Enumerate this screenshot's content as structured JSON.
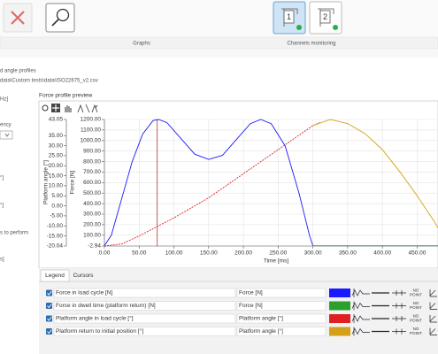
{
  "toolbar": {
    "sections": [
      "Graphs",
      "Channels monitoring"
    ],
    "channels": [
      "1",
      "2"
    ]
  },
  "left_panel": {
    "texts": [
      "d angle profiles",
      "data\\Custom tests\\data\\ISO22675_v2.csv",
      "Hz]",
      "ency",
      "°]",
      "°]",
      "s to perform",
      "s]"
    ]
  },
  "chart": {
    "type": "line",
    "title": "Force profile preview",
    "x_label": "Time [ms]",
    "angle_axis_label": "Platform angle [°]",
    "force_axis_label": "Force [N]",
    "xlim": [
      0,
      480
    ],
    "xticks": [
      {
        "value": 0,
        "label": "0.00"
      },
      {
        "value": 50,
        "label": "50.00"
      },
      {
        "value": 100,
        "label": "100.00"
      },
      {
        "value": 150,
        "label": "150.00"
      },
      {
        "value": 200,
        "label": "200.00"
      },
      {
        "value": 250,
        "label": "250.00"
      },
      {
        "value": 300,
        "label": "300.00"
      },
      {
        "value": 350,
        "label": "350.00"
      },
      {
        "value": 400,
        "label": "400.00"
      },
      {
        "value": 450,
        "label": "450.00"
      }
    ],
    "force_lim": [
      -2.94,
      1200
    ],
    "force_ticks": [
      {
        "value": 1200,
        "label": "1200.00"
      },
      {
        "value": 1100,
        "label": "1100.00"
      },
      {
        "value": 1000,
        "label": "1000.00"
      },
      {
        "value": 900,
        "label": "900.00"
      },
      {
        "value": 800,
        "label": "800.00"
      },
      {
        "value": 700,
        "label": "700.00"
      },
      {
        "value": 600,
        "label": "600.00"
      },
      {
        "value": 500,
        "label": "500.00"
      },
      {
        "value": 400,
        "label": "400.00"
      },
      {
        "value": 300,
        "label": "300.00"
      },
      {
        "value": 200,
        "label": "200.00"
      },
      {
        "value": 100,
        "label": "100.00"
      },
      -2.94
    ],
    "angle_lim": [
      -20.04,
      43.05
    ],
    "angle_ticks": [
      43.05,
      {
        "value": 35,
        "label": "35.00"
      },
      {
        "value": 30,
        "label": "30.00"
      },
      {
        "value": 25,
        "label": "25.00"
      },
      {
        "value": 20,
        "label": "20.00"
      },
      {
        "value": 15,
        "label": "15.00"
      },
      {
        "value": 10,
        "label": "10.00"
      },
      {
        "value": 5,
        "label": "5.00"
      },
      {
        "value": 0,
        "label": "0.00"
      },
      {
        "value": -5,
        "label": "-5.00"
      },
      {
        "value": -10,
        "label": "-10.00"
      },
      {
        "value": -15,
        "label": "-15.00"
      },
      -20.04
    ],
    "grid": true,
    "cursor_x": 76,
    "series": [
      {
        "name": "Force in load cycle [N]",
        "axis": "force",
        "color": "#1a1aff",
        "dashed": false,
        "x": [
          0,
          10,
          25,
          40,
          55,
          70,
          78,
          90,
          110,
          130,
          150,
          170,
          190,
          210,
          225,
          240,
          260,
          280,
          295,
          300
        ],
        "values": [
          0,
          100,
          450,
          800,
          1060,
          1190,
          1200,
          1170,
          1020,
          870,
          820,
          860,
          1010,
          1160,
          1200,
          1160,
          950,
          500,
          100,
          0
        ]
      },
      {
        "name": "Force in dwell time (platform return) [N]",
        "axis": "force",
        "color": "#2ca02c",
        "dashed": false,
        "x": [
          300,
          480
        ],
        "values": [
          0,
          0
        ]
      },
      {
        "name": "Platform angle in load cycle [°]",
        "axis": "angle",
        "color": "#e02020",
        "dashed": true,
        "x": [
          0,
          25,
          50,
          100,
          150,
          200,
          250,
          300,
          310
        ],
        "values": [
          -20.04,
          -19,
          -15,
          -6,
          4,
          16,
          28,
          40,
          41.5
        ]
      },
      {
        "name": "Platform return to initial position [°]",
        "axis": "angle",
        "color": "#d4a017",
        "dashed": false,
        "x": [
          300,
          325,
          350,
          375,
          400,
          425,
          450,
          475,
          480
        ],
        "values": [
          40,
          43.05,
          41,
          36,
          28,
          17,
          5,
          -8,
          -11
        ]
      }
    ]
  },
  "legend": {
    "tabs": [
      "Legend",
      "Cursors"
    ],
    "units": [
      "Force [N]",
      "Force [N]",
      "Platform angle [°]",
      "Platform angle [°]"
    ],
    "no_point": [
      "NO",
      "POINT"
    ]
  }
}
